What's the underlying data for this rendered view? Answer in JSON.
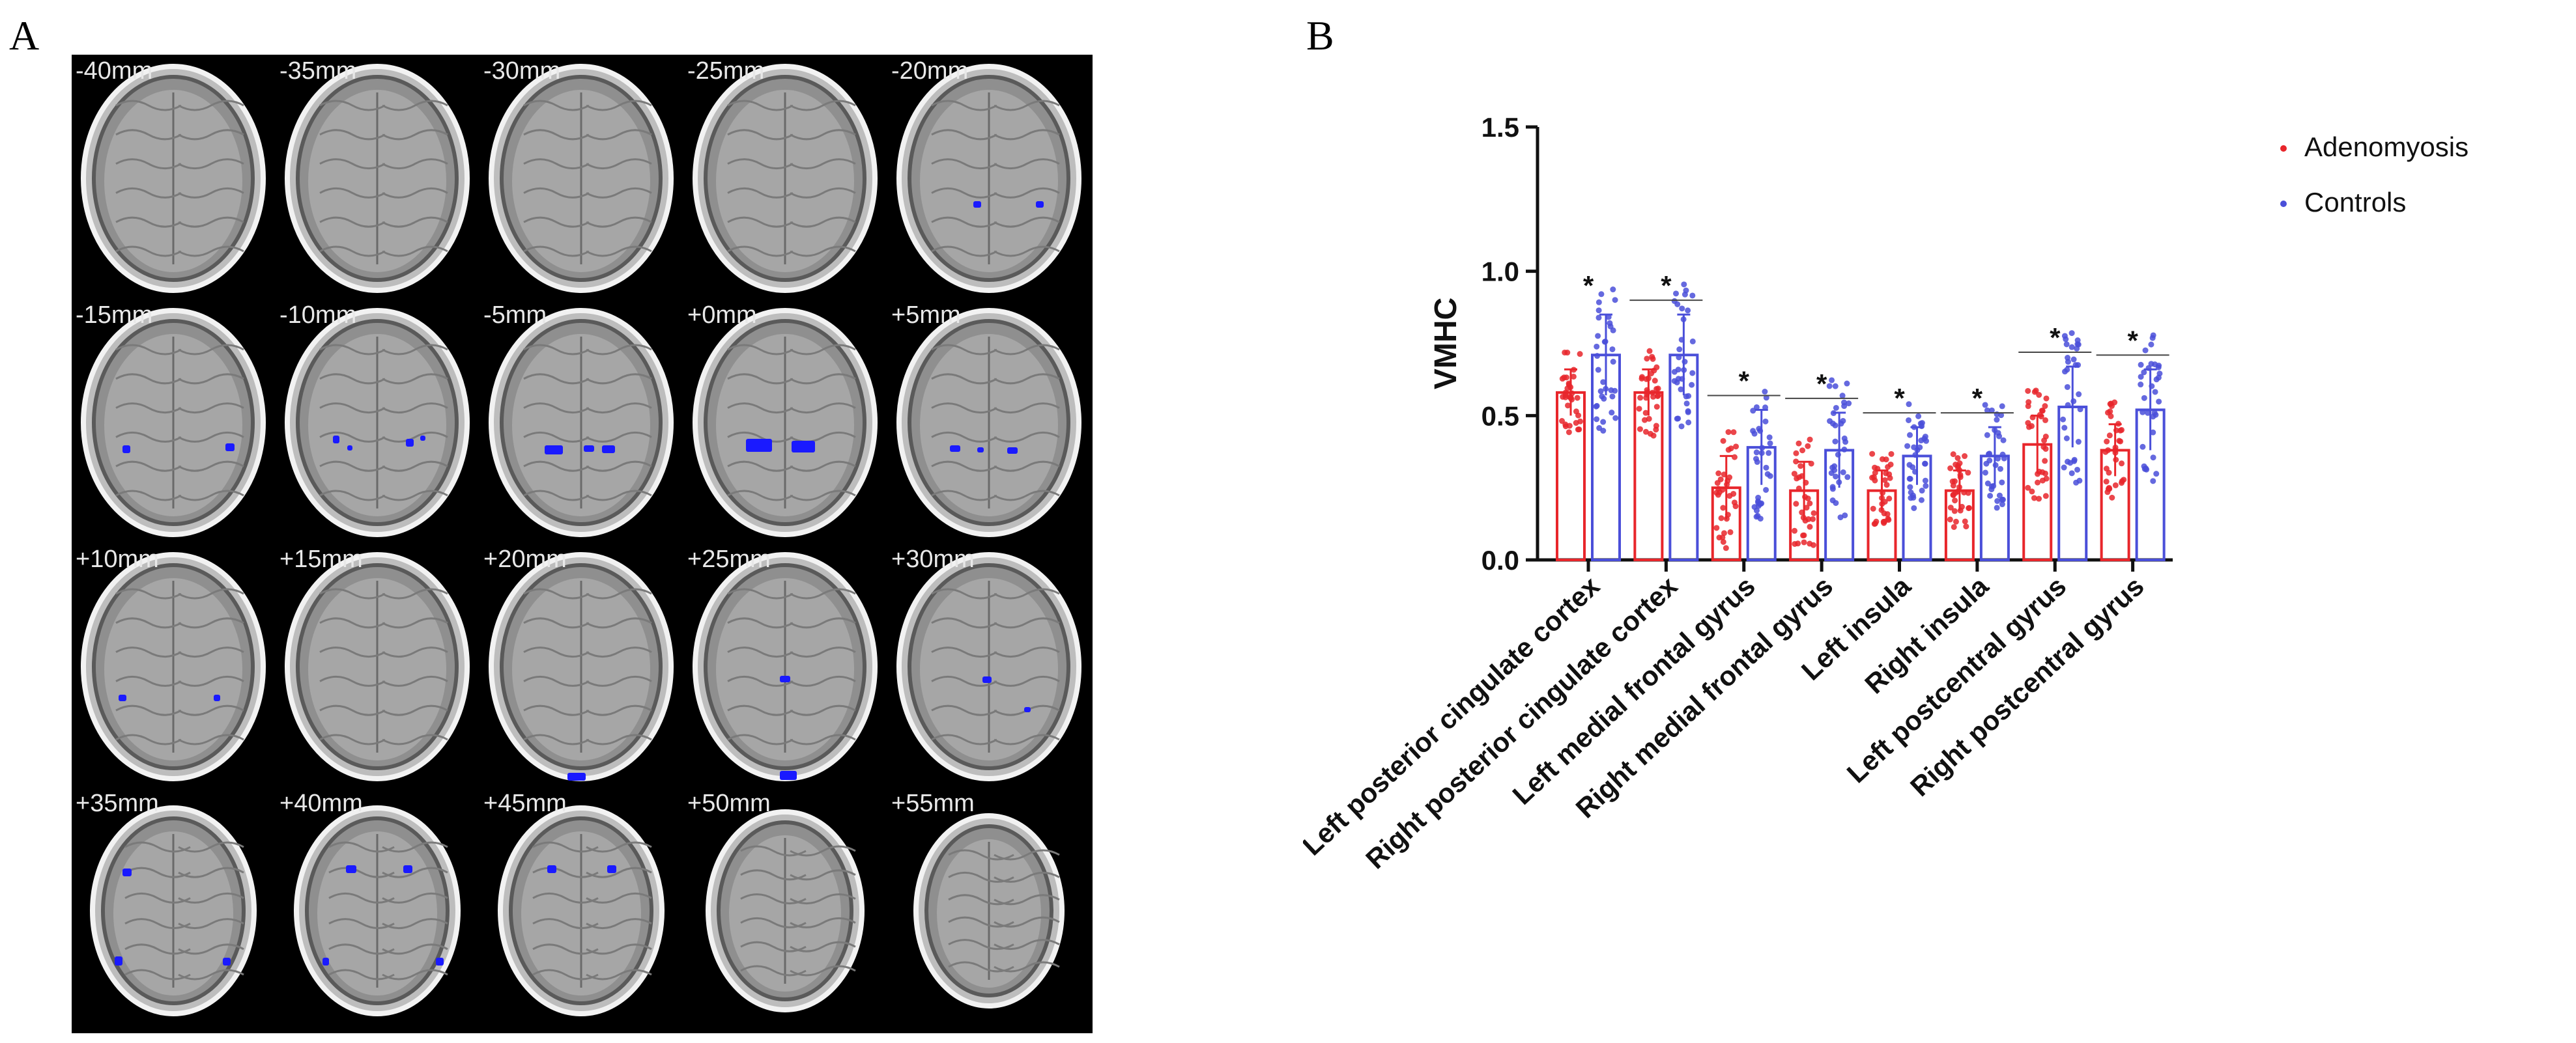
{
  "panels": {
    "a_letter": "A",
    "b_letter": "B"
  },
  "brain_slices": {
    "labels": [
      "-40mm",
      "-35mm",
      "-30mm",
      "-25mm",
      "-20mm",
      "-15mm",
      "-10mm",
      "-5mm",
      "+0mm",
      "+5mm",
      "+10mm",
      "+15mm",
      "+20mm",
      "+25mm",
      "+30mm",
      "+35mm",
      "+40mm",
      "+45mm",
      "+50mm",
      "+55mm"
    ],
    "highlight_color": "#1a1aff"
  },
  "chart_data": {
    "type": "bar",
    "ylabel": "VMHC",
    "ylim": [
      0,
      1.5
    ],
    "yticks": [
      "0.0",
      "0.5",
      "1.0",
      "1.5"
    ],
    "categories": [
      "Left posterior cingulate cortex",
      "Right posterior cingulate cortex",
      "Left medial frontal gyrus",
      "Right medial frontal gyrus",
      "Left insula",
      "Right insula",
      "Left postcentral gyrus",
      "Right postcentral gyrus"
    ],
    "series": [
      {
        "name": "Adenomyosis",
        "color": "#e8262b",
        "values": [
          0.58,
          0.58,
          0.25,
          0.24,
          0.24,
          0.24,
          0.4,
          0.38
        ],
        "err": [
          0.08,
          0.08,
          0.11,
          0.1,
          0.07,
          0.07,
          0.1,
          0.09
        ]
      },
      {
        "name": "Controls",
        "color": "#4a4fd9",
        "values": [
          0.71,
          0.71,
          0.39,
          0.38,
          0.36,
          0.36,
          0.53,
          0.52
        ],
        "err": [
          0.14,
          0.14,
          0.13,
          0.13,
          0.1,
          0.1,
          0.14,
          0.14
        ]
      }
    ],
    "significance": [
      "*",
      "*",
      "*",
      "*",
      "*",
      "*",
      "*",
      "*"
    ],
    "legend_position": "top-right",
    "grid": false
  }
}
